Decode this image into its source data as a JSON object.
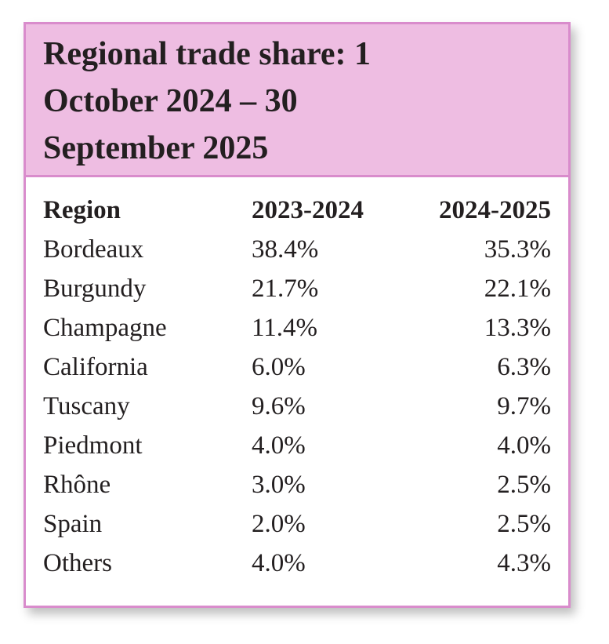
{
  "header": {
    "title": "Regional trade share: 1 October 2024 – 30 September 2025"
  },
  "table": {
    "columns": [
      "Region",
      "2023-2024",
      "2024-2025"
    ],
    "rows": [
      [
        "Bordeaux",
        "38.4%",
        "35.3%"
      ],
      [
        "Burgundy",
        "21.7%",
        "22.1%"
      ],
      [
        "Champagne",
        "11.4%",
        "13.3%"
      ],
      [
        "California",
        "6.0%",
        "6.3%"
      ],
      [
        "Tuscany",
        "9.6%",
        "9.7%"
      ],
      [
        "Piedmont",
        "4.0%",
        "4.0%"
      ],
      [
        "Rhône",
        "3.0%",
        "2.5%"
      ],
      [
        "Spain",
        "2.0%",
        "2.5%"
      ],
      [
        "Others",
        "4.0%",
        "4.3%"
      ]
    ]
  }
}
